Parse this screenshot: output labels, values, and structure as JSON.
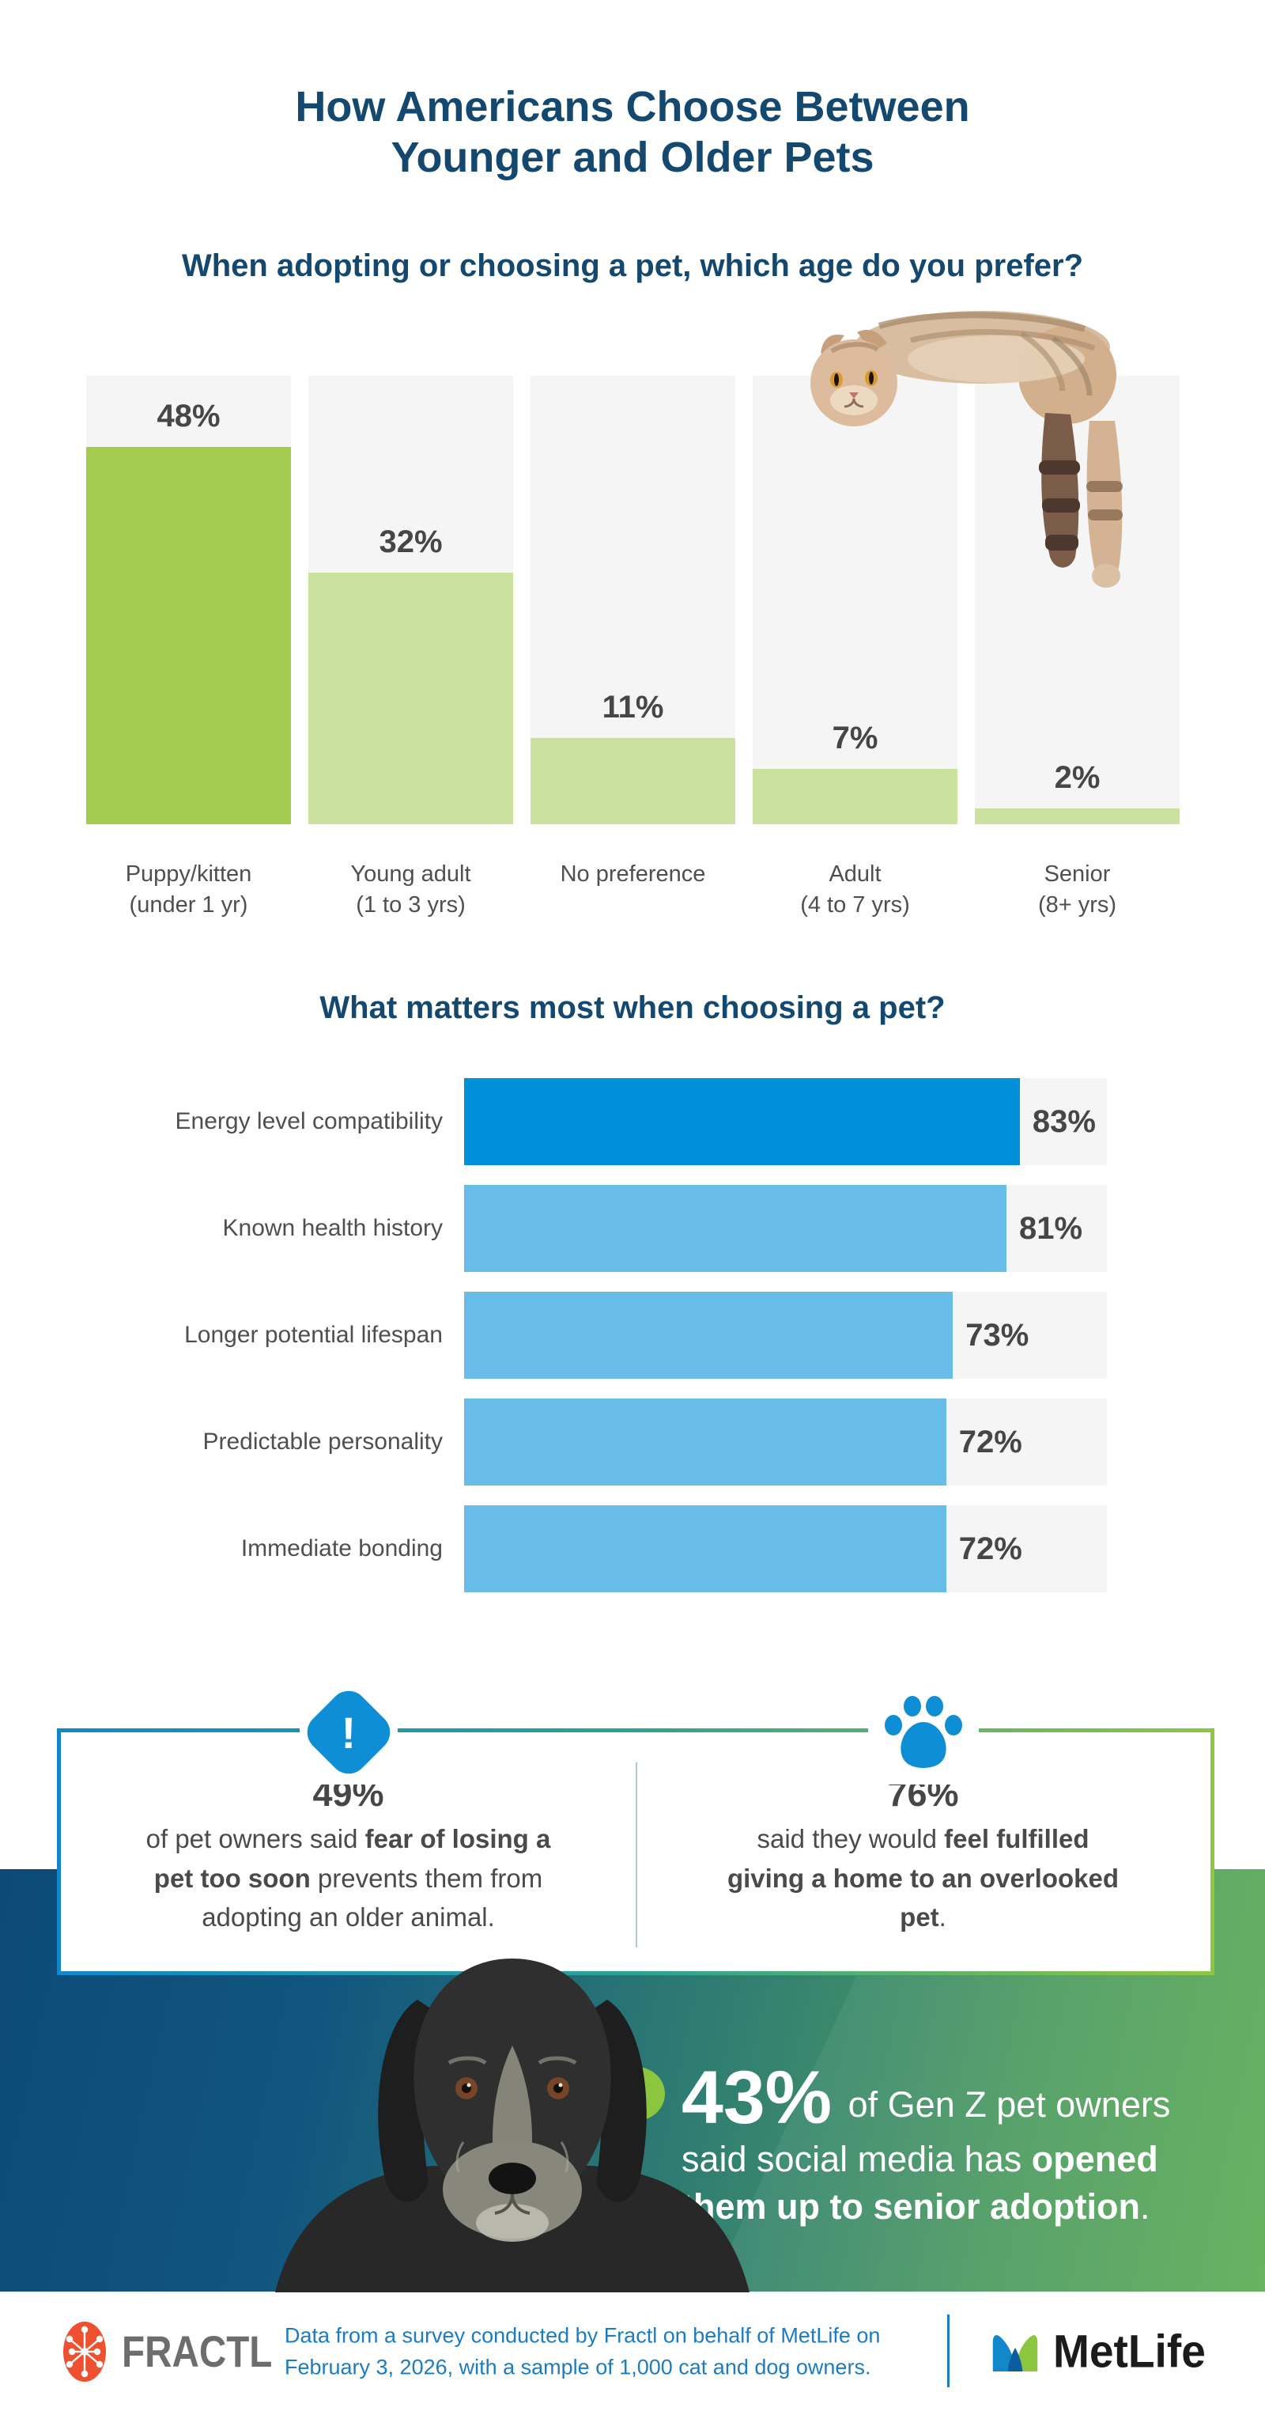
{
  "title": {
    "line1": "How Americans Choose Between",
    "line2": "Younger and Older Pets"
  },
  "colors": {
    "navy_heading": "#14486f",
    "dark_green_bar": "#a3cb4e",
    "light_green_bar": "#cbe29e",
    "dark_blue_bar": "#0090d9",
    "light_blue_bar": "#68bde8",
    "track_gray": "#f4f5f4",
    "icon_blue": "#0e8fd5",
    "hero_navy": "#0d4a77",
    "hero_green": "#5fae58",
    "badge_green": "#8cc63f",
    "footer_blue": "#1d7cc1",
    "fractl_orange": "#ef5130"
  },
  "chart_data": [
    {
      "type": "bar",
      "orientation": "vertical",
      "title": "When adopting or choosing a pet, which age do you prefer?",
      "categories": [
        [
          "Puppy/kitten",
          "(under 1 yr)"
        ],
        [
          "Young adult",
          "(1 to 3 yrs)"
        ],
        [
          "No preference"
        ],
        [
          "Adult",
          "(4 to 7 yrs)"
        ],
        [
          "Senior",
          "(8+ yrs)"
        ]
      ],
      "values": [
        48,
        32,
        11,
        7,
        2
      ],
      "value_labels": [
        "48%",
        "32%",
        "11%",
        "7%",
        "2%"
      ],
      "unit": "%",
      "ylim": [
        0,
        57
      ],
      "grid": false,
      "bar_colors": [
        "#a3cb4e",
        "#cbe29e",
        "#cbe29e",
        "#cbe29e",
        "#cbe29e"
      ]
    },
    {
      "type": "bar",
      "orientation": "horizontal",
      "title": "What matters most when choosing a pet?",
      "categories": [
        "Energy level compatibility",
        "Known health history",
        "Longer potential lifespan",
        "Predictable personality",
        "Immediate bonding"
      ],
      "values": [
        83,
        81,
        73,
        72,
        72
      ],
      "value_labels": [
        "83%",
        "81%",
        "73%",
        "72%",
        "72%"
      ],
      "unit": "%",
      "xlim": [
        0,
        96
      ],
      "grid": false,
      "bar_colors": [
        "#0090d9",
        "#68bde8",
        "#68bde8",
        "#68bde8",
        "#68bde8"
      ]
    }
  ],
  "callouts": {
    "left": {
      "icon": "alert-diamond-icon",
      "stat": "49%",
      "segments": [
        {
          "t": "of pet owners said "
        },
        {
          "t": "fear of losing a pet too soon",
          "b": true
        },
        {
          "t": " prevents them from adopting an older animal."
        }
      ]
    },
    "right": {
      "icon": "paw-icon",
      "stat": "76%",
      "segments": [
        {
          "t": "said they would "
        },
        {
          "t": "feel fulfilled giving a home to an overlooked pet",
          "b": true
        },
        {
          "t": "."
        }
      ]
    }
  },
  "hero": {
    "icon": "heart-icon",
    "heart_glyph": "♥",
    "stat": "43%",
    "segments": [
      {
        "t": " of Gen Z pet owners said social media has "
      },
      {
        "t": "opened them up to senior adoption",
        "b": true
      },
      {
        "t": "."
      }
    ]
  },
  "images": {
    "cat": "lying-tabby-cat-photo",
    "dog": "senior-black-dog-photo"
  },
  "footer": {
    "fractl_label": "FRACTL",
    "note_line1": "Data from a survey conducted by Fractl on behalf of MetLife on",
    "note_line2": "February 3, 2026, with a sample of 1,000 cat and dog owners.",
    "metlife_label": "MetLife"
  }
}
